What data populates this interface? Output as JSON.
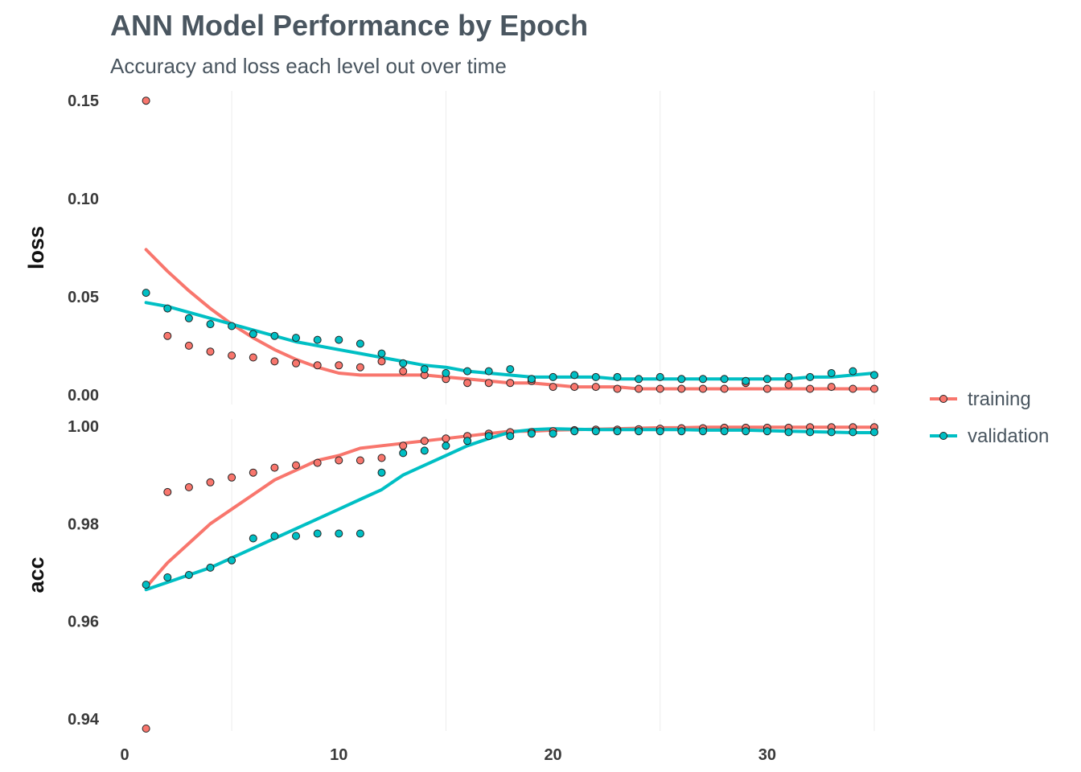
{
  "chart_data": {
    "type": "scatter",
    "title": "ANN Model Performance by Epoch",
    "subtitle": "Accuracy and loss each level out over time",
    "xlabel": "",
    "ylabel": "",
    "x_ticks": [
      "0",
      "10",
      "20",
      "30"
    ],
    "xlim": [
      0,
      35
    ],
    "grid": "vertical major lines only",
    "legend_position": "right",
    "colors": {
      "training": "#F8766D",
      "validation": "#00BFC4"
    },
    "legend": [
      "training",
      "validation"
    ],
    "facets": [
      {
        "label": "loss",
        "ylim": [
          -0.005,
          0.155
        ],
        "y_ticks": [
          "0.00",
          "0.05",
          "0.10",
          "0.15"
        ],
        "epochs": [
          1,
          2,
          3,
          4,
          5,
          6,
          7,
          8,
          9,
          10,
          11,
          12,
          13,
          14,
          15,
          16,
          17,
          18,
          19,
          20,
          21,
          22,
          23,
          24,
          25,
          26,
          27,
          28,
          29,
          30,
          31,
          32,
          33,
          34,
          35
        ],
        "series": [
          {
            "name": "training",
            "values": [
              0.15,
              0.03,
              0.025,
              0.022,
              0.02,
              0.019,
              0.017,
              0.016,
              0.015,
              0.015,
              0.014,
              0.017,
              0.012,
              0.01,
              0.008,
              0.006,
              0.006,
              0.006,
              0.007,
              0.004,
              0.004,
              0.004,
              0.003,
              0.003,
              0.003,
              0.003,
              0.003,
              0.003,
              0.006,
              0.003,
              0.005,
              0.003,
              0.004,
              0.003,
              0.003
            ],
            "smooth": [
              0.074,
              0.063,
              0.053,
              0.044,
              0.036,
              0.029,
              0.023,
              0.018,
              0.014,
              0.011,
              0.01,
              0.01,
              0.01,
              0.01,
              0.009,
              0.008,
              0.007,
              0.006,
              0.006,
              0.005,
              0.004,
              0.004,
              0.004,
              0.003,
              0.003,
              0.003,
              0.003,
              0.003,
              0.003,
              0.003,
              0.003,
              0.003,
              0.003,
              0.003,
              0.003
            ]
          },
          {
            "name": "validation",
            "values": [
              0.052,
              0.044,
              0.039,
              0.036,
              0.035,
              0.031,
              0.03,
              0.029,
              0.028,
              0.028,
              0.026,
              0.021,
              0.016,
              0.013,
              0.011,
              0.012,
              0.012,
              0.013,
              0.008,
              0.009,
              0.01,
              0.009,
              0.009,
              0.008,
              0.009,
              0.008,
              0.008,
              0.008,
              0.007,
              0.008,
              0.009,
              0.009,
              0.011,
              0.012,
              0.01
            ],
            "smooth": [
              0.047,
              0.045,
              0.042,
              0.039,
              0.036,
              0.033,
              0.03,
              0.027,
              0.025,
              0.023,
              0.021,
              0.019,
              0.017,
              0.015,
              0.014,
              0.012,
              0.011,
              0.01,
              0.009,
              0.009,
              0.009,
              0.009,
              0.008,
              0.008,
              0.008,
              0.008,
              0.008,
              0.008,
              0.008,
              0.008,
              0.008,
              0.009,
              0.009,
              0.01,
              0.011
            ]
          }
        ]
      },
      {
        "label": "acc",
        "ylim": [
          0.9375,
          1.0015
        ],
        "y_ticks": [
          "0.94",
          "0.96",
          "0.98",
          "1.00"
        ],
        "epochs": [
          1,
          2,
          3,
          4,
          5,
          6,
          7,
          8,
          9,
          10,
          11,
          12,
          13,
          14,
          15,
          16,
          17,
          18,
          19,
          20,
          21,
          22,
          23,
          24,
          25,
          26,
          27,
          28,
          29,
          30,
          31,
          32,
          33,
          34,
          35
        ],
        "series": [
          {
            "name": "training",
            "values": [
              0.938,
              0.9865,
              0.9875,
              0.9885,
              0.9895,
              0.9905,
              0.9915,
              0.992,
              0.9925,
              0.993,
              0.993,
              0.9935,
              0.996,
              0.997,
              0.9975,
              0.998,
              0.9985,
              0.9988,
              0.9988,
              0.999,
              0.9992,
              0.9993,
              0.9993,
              0.9994,
              0.9995,
              0.9996,
              0.9996,
              0.9997,
              0.9997,
              0.9997,
              0.9997,
              0.9998,
              0.9998,
              0.9998,
              0.9998
            ],
            "smooth": [
              0.967,
              0.972,
              0.976,
              0.98,
              0.983,
              0.986,
              0.989,
              0.991,
              0.993,
              0.994,
              0.9955,
              0.996,
              0.9965,
              0.997,
              0.9975,
              0.998,
              0.9985,
              0.999,
              0.999,
              0.9992,
              0.9993,
              0.9994,
              0.9995,
              0.9996,
              0.9997,
              0.9997,
              0.9998,
              0.9998,
              0.9998,
              0.9998,
              0.9998,
              0.9998,
              0.9998,
              0.9998,
              0.9998
            ]
          },
          {
            "name": "validation",
            "values": [
              0.9675,
              0.969,
              0.9695,
              0.971,
              0.9725,
              0.977,
              0.9775,
              0.9775,
              0.978,
              0.978,
              0.978,
              0.9905,
              0.9945,
              0.995,
              0.996,
              0.997,
              0.998,
              0.998,
              0.9985,
              0.9985,
              0.999,
              0.999,
              0.999,
              0.999,
              0.999,
              0.999,
              0.999,
              0.999,
              0.999,
              0.999,
              0.9988,
              0.9988,
              0.9988,
              0.9988,
              0.9988
            ],
            "smooth": [
              0.9665,
              0.968,
              0.9695,
              0.971,
              0.973,
              0.975,
              0.977,
              0.979,
              0.981,
              0.983,
              0.985,
              0.987,
              0.99,
              0.992,
              0.994,
              0.996,
              0.9975,
              0.9988,
              0.9993,
              0.9995,
              0.9994,
              0.9993,
              0.9993,
              0.9993,
              0.9993,
              0.9993,
              0.9992,
              0.9992,
              0.9992,
              0.9991,
              0.999,
              0.9989,
              0.9988,
              0.9987,
              0.9987
            ]
          }
        ]
      }
    ]
  }
}
